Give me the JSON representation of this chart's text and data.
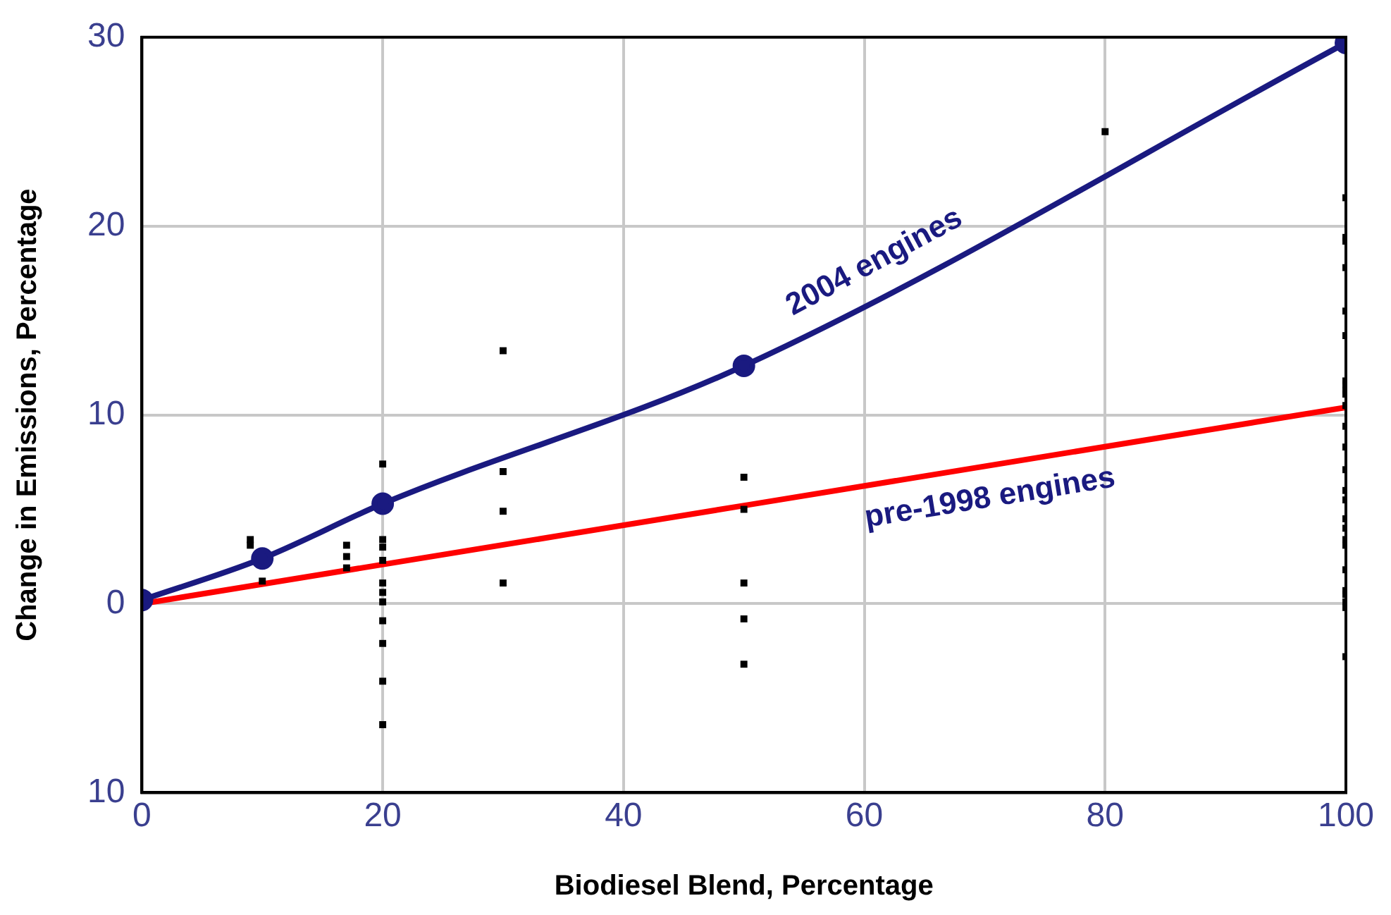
{
  "chart_data": {
    "type": "line",
    "xlabel": "Biodiesel Blend, Percentage",
    "ylabel": "Change in Emissions, Percentage",
    "xlim": [
      0,
      100
    ],
    "xticks": [
      0,
      20,
      40,
      60,
      80,
      100
    ],
    "ylim": [
      -10,
      30
    ],
    "yticks": [
      {
        "value": -10,
        "label": "10"
      },
      0,
      10,
      20,
      30
    ],
    "grid": true,
    "legend": false,
    "series": [
      {
        "name": "2004 engines",
        "color": "#1a1a80",
        "marker": "circle",
        "x": [
          0,
          10,
          20,
          50,
          100
        ],
        "values": [
          0.2,
          2.4,
          5.3,
          12.6,
          29.7
        ]
      },
      {
        "name": "pre-1998 engines",
        "color": "#ff0000",
        "marker": "none",
        "x": [
          0,
          100
        ],
        "values": [
          0,
          10.4
        ]
      },
      {
        "type": "scatter",
        "color": "#000000",
        "marker": "square",
        "x": [
          9,
          9,
          10,
          17,
          17,
          17,
          20,
          20,
          20,
          20,
          20,
          20,
          20,
          20,
          20,
          20,
          20,
          30,
          30,
          30,
          30,
          50,
          50,
          50,
          50,
          50,
          80,
          100,
          100,
          100,
          100,
          100,
          100,
          100,
          100,
          100,
          100,
          100,
          100,
          100,
          100,
          100,
          100,
          100,
          100,
          100,
          100,
          100,
          100,
          100,
          100,
          100,
          100
        ],
        "values": [
          3.4,
          3.1,
          1.2,
          3.1,
          2.5,
          1.9,
          7.4,
          3.4,
          3.0,
          2.3,
          1.1,
          0.6,
          0.1,
          -0.9,
          -2.1,
          -4.1,
          -6.4,
          13.4,
          7.0,
          4.9,
          1.1,
          6.7,
          5.0,
          1.1,
          -0.8,
          -3.2,
          25.0,
          21.5,
          19.4,
          19.2,
          17.8,
          15.5,
          14.2,
          11.8,
          11.6,
          11.3,
          11.1,
          10.5,
          9.4,
          8.3,
          7.1,
          6.0,
          5.5,
          4.5,
          4.0,
          3.4,
          3.1,
          1.8,
          0.7,
          0.5,
          0.1,
          -0.2,
          -2.8
        ]
      }
    ]
  }
}
